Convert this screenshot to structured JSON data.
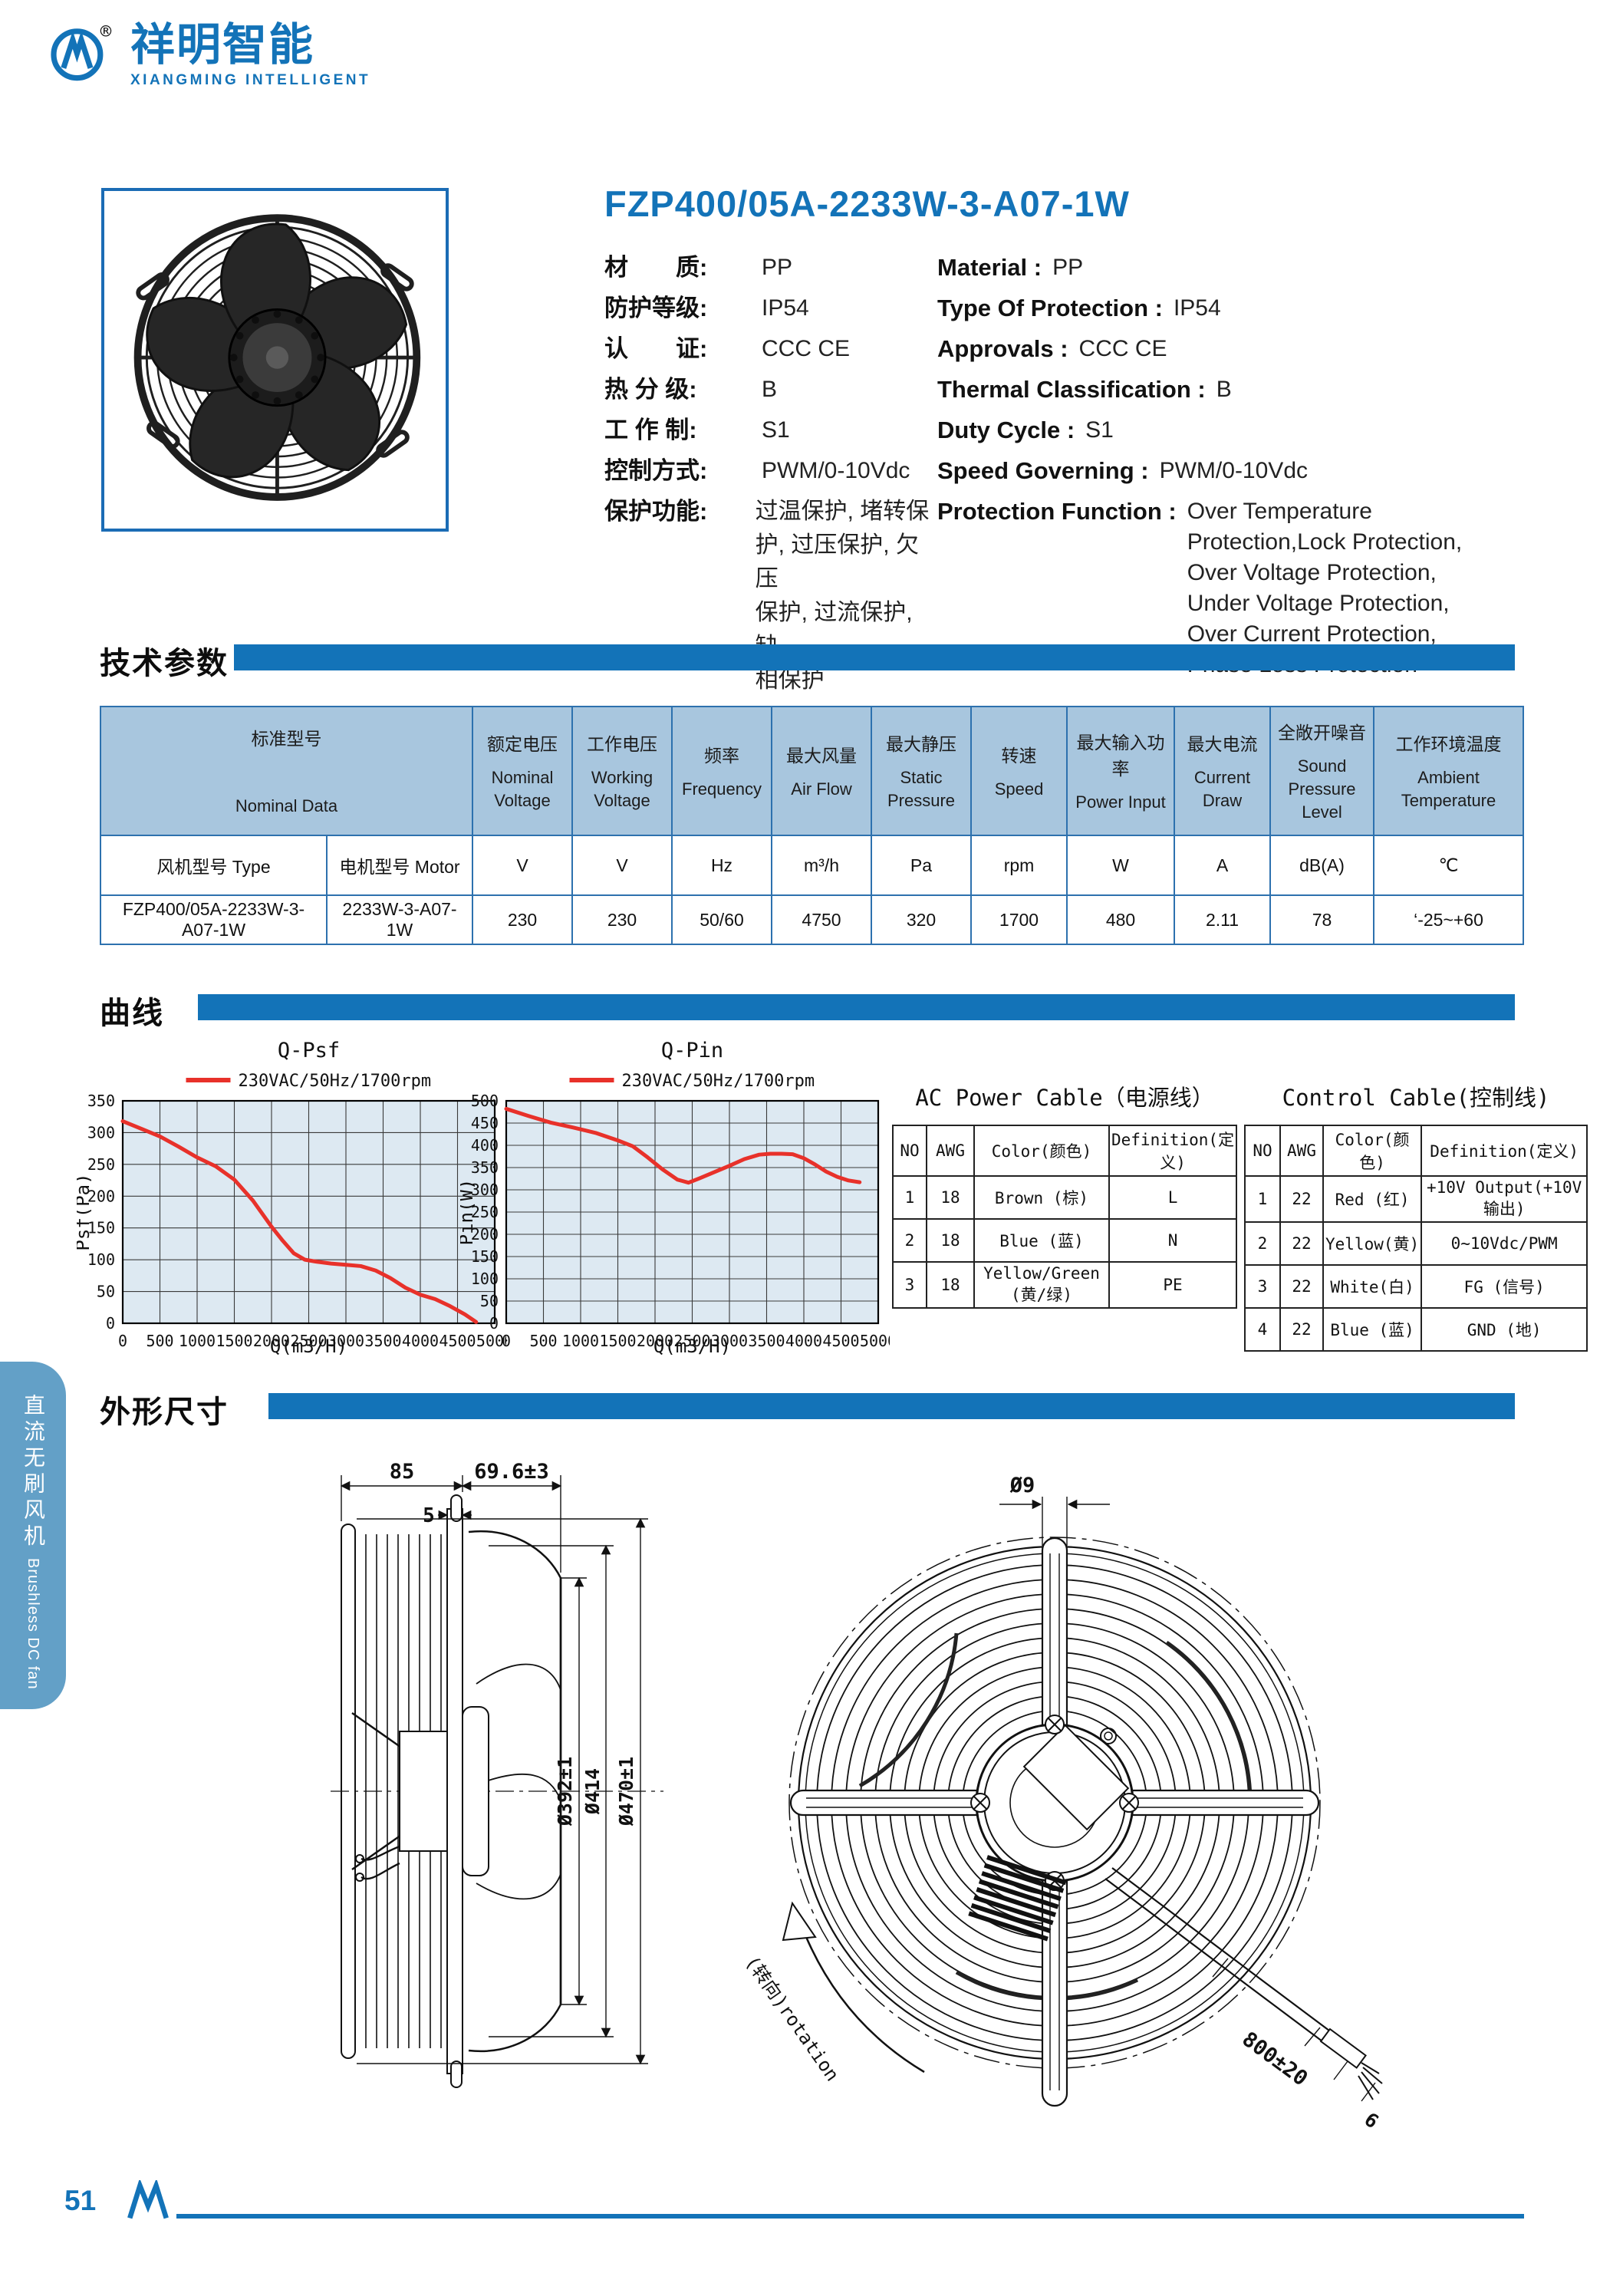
{
  "brand": {
    "cn": "祥明智能",
    "en": "XIANGMING INTELLIGENT",
    "registered": "®"
  },
  "product": {
    "title": "FZP400/05A-2233W-3-A07-1W"
  },
  "specs": {
    "cn": [
      {
        "label": "材　　质:",
        "value": "PP"
      },
      {
        "label": "防护等级:",
        "value": "IP54"
      },
      {
        "label": "认　　证:",
        "value": "CCC   CE"
      },
      {
        "label": "热 分 级:",
        "value": "B"
      },
      {
        "label": "工 作 制:",
        "value": "S1"
      },
      {
        "label": "控制方式:",
        "value": "PWM/0-10Vdc"
      },
      {
        "label": "保护功能:",
        "value": "过温保护, 堵转保\n护, 过压保护, 欠压\n保护, 过流保护, 缺\n相保护"
      }
    ],
    "en": [
      {
        "label": "Material :",
        "value": "PP"
      },
      {
        "label": "Type Of Protection :",
        "value": "IP54"
      },
      {
        "label": "Approvals :",
        "value": "CCC   CE"
      },
      {
        "label": "Thermal Classification :",
        "value": "B"
      },
      {
        "label": "Duty Cycle :",
        "value": "S1"
      },
      {
        "label": "Speed Governing :",
        "value": "PWM/0-10Vdc"
      },
      {
        "label": "Protection Function :",
        "value": "Over Temperature\nProtection,Lock Protection,\nOver Voltage Protection,\nUnder Voltage Protection,\nOver Current Protection,\nPhase Loss Protection"
      }
    ]
  },
  "sections": {
    "tech": "技术参数",
    "curves": "曲线",
    "dimensions": "外形尺寸"
  },
  "tech_table": {
    "group": {
      "cn": "标准型号",
      "en": "Nominal Data"
    },
    "type_col": {
      "label": "风机型号 Type",
      "value": "FZP400/05A-2233W-3-A07-1W"
    },
    "motor_col": {
      "label": "电机型号 Motor",
      "value": "2233W-3-A07-1W"
    },
    "columns": [
      {
        "cn": "额定电压",
        "en": "Nominal Voltage",
        "unit": "V",
        "value": "230"
      },
      {
        "cn": "工作电压",
        "en": "Working Voltage",
        "unit": "V",
        "value": "230"
      },
      {
        "cn": "频率",
        "en": "Frequency",
        "unit": "Hz",
        "value": "50/60"
      },
      {
        "cn": "最大风量",
        "en": "Air Flow",
        "unit": "m³/h",
        "value": "4750"
      },
      {
        "cn": "最大静压",
        "en": "Static Pressure",
        "unit": "Pa",
        "value": "320"
      },
      {
        "cn": "转速",
        "en": "Speed",
        "unit": "rpm",
        "value": "1700"
      },
      {
        "cn": "最大输入功率",
        "en": "Power Input",
        "unit": "W",
        "value": "480"
      },
      {
        "cn": "最大电流",
        "en": "Current Draw",
        "unit": "A",
        "value": "2.11"
      },
      {
        "cn": "全敞开噪音",
        "en": "Sound Pressure Level",
        "unit": "dB(A)",
        "value": "78"
      },
      {
        "cn": "工作环境温度",
        "en": "Ambient Temperature",
        "unit": "℃",
        "value": "‘-25~+60"
      }
    ]
  },
  "chart_data": [
    {
      "type": "line",
      "title": "Q-Psf",
      "xlabel": "Q(m3/H)",
      "ylabel": "Psf(Pa)",
      "xlim": [
        0,
        5000
      ],
      "xstep": 500,
      "ylim": [
        0,
        350
      ],
      "ystep": 50,
      "grid": true,
      "legend_position": "top",
      "series": [
        {
          "name": "230VAC/50Hz/1700rpm",
          "color": "#e8312a",
          "points": [
            [
              0,
              318
            ],
            [
              250,
              306
            ],
            [
              500,
              294
            ],
            [
              750,
              278
            ],
            [
              1000,
              261
            ],
            [
              1250,
              247
            ],
            [
              1500,
              226
            ],
            [
              1750,
              193
            ],
            [
              2000,
              152
            ],
            [
              2150,
              130
            ],
            [
              2300,
              110
            ],
            [
              2450,
              100
            ],
            [
              2600,
              97
            ],
            [
              2800,
              94
            ],
            [
              3000,
              92
            ],
            [
              3200,
              90
            ],
            [
              3400,
              83
            ],
            [
              3600,
              71
            ],
            [
              3800,
              56
            ],
            [
              4000,
              45
            ],
            [
              4200,
              38
            ],
            [
              4400,
              27
            ],
            [
              4600,
              14
            ],
            [
              4750,
              2
            ]
          ]
        }
      ]
    },
    {
      "type": "line",
      "title": "Q-Pin",
      "xlabel": "Q(m3/H)",
      "ylabel": "Pin(W)",
      "xlim": [
        0,
        5000
      ],
      "xstep": 500,
      "ylim": [
        0,
        500
      ],
      "ystep": 50,
      "grid": true,
      "legend_position": "top",
      "series": [
        {
          "name": "230VAC/50Hz/1700rpm",
          "color": "#e8312a",
          "points": [
            [
              0,
              482
            ],
            [
              300,
              466
            ],
            [
              600,
              451
            ],
            [
              900,
              440
            ],
            [
              1200,
              428
            ],
            [
              1500,
              411
            ],
            [
              1700,
              398
            ],
            [
              1900,
              373
            ],
            [
              2100,
              346
            ],
            [
              2300,
              323
            ],
            [
              2450,
              316
            ],
            [
              2600,
              326
            ],
            [
              2800,
              340
            ],
            [
              3000,
              354
            ],
            [
              3200,
              369
            ],
            [
              3400,
              379
            ],
            [
              3550,
              381
            ],
            [
              3700,
              381
            ],
            [
              3850,
              380
            ],
            [
              4000,
              371
            ],
            [
              4150,
              357
            ],
            [
              4300,
              341
            ],
            [
              4450,
              329
            ],
            [
              4600,
              321
            ],
            [
              4750,
              317
            ]
          ]
        }
      ]
    }
  ],
  "cable_tables": [
    {
      "title": "AC Power Cable（电源线）",
      "headers": [
        "NO",
        "AWG",
        "Color(颜色)",
        "Definition(定义)"
      ],
      "rows": [
        [
          "1",
          "18",
          "Brown (棕)",
          "L"
        ],
        [
          "2",
          "18",
          "Blue (蓝)",
          "N"
        ],
        [
          "3",
          "18",
          "Yellow/Green (黄/绿)",
          "PE"
        ]
      ]
    },
    {
      "title": "Control Cable(控制线)",
      "headers": [
        "NO",
        "AWG",
        "Color(颜色)",
        "Definition(定义)"
      ],
      "rows": [
        [
          "1",
          "22",
          "Red (红)",
          "+10V Output(+10V输出)"
        ],
        [
          "2",
          "22",
          "Yellow(黄)",
          "0~10Vdc/PWM"
        ],
        [
          "3",
          "22",
          "White(白)",
          "FG (信号)"
        ],
        [
          "4",
          "22",
          "Blue (蓝)",
          "GND (地)"
        ]
      ]
    }
  ],
  "drawings": {
    "side": {
      "dim_85": "85",
      "dim_696": "69.6±3",
      "dim_5": "5",
      "dim_392": "Ø392±1",
      "dim_414": "Ø414",
      "dim_470": "Ø470±1"
    },
    "front": {
      "dim_9": "Ø9",
      "dim_800": "800±20",
      "dim_6": "6",
      "rotation": "(转向)rotation"
    }
  },
  "sidebar": {
    "cn": "直流无刷风机",
    "en": "Brushless DC fan"
  },
  "footer": {
    "page": "51"
  }
}
